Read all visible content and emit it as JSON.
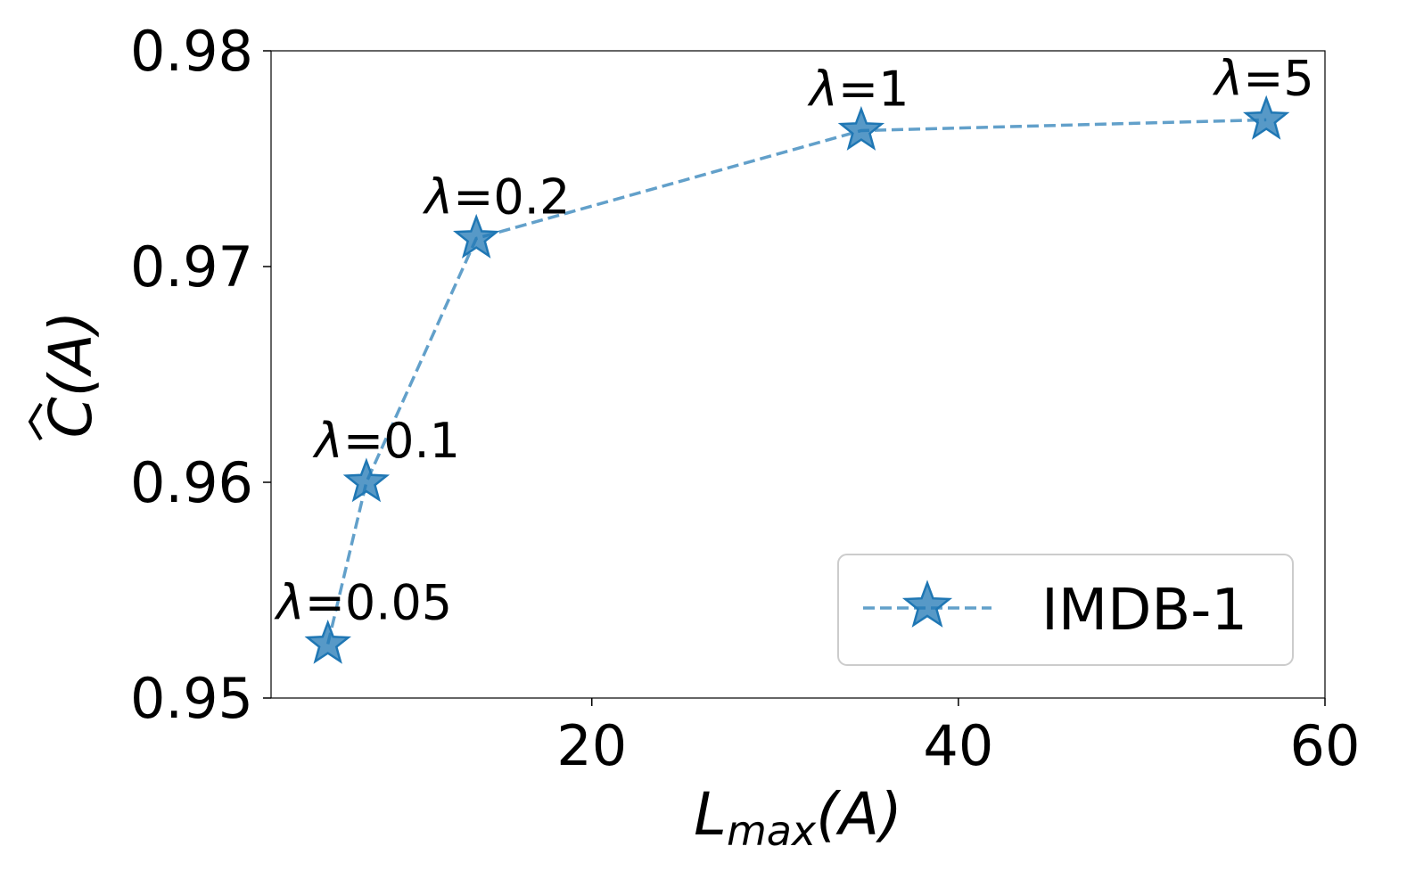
{
  "chart_data": {
    "type": "line",
    "xlabel_main": "L",
    "xlabel_sub": "max",
    "xlabel_tail": "(A)",
    "ylabel_symbol": "C",
    "ylabel_tail": "(A)",
    "xlim": [
      2.5,
      60
    ],
    "ylim": [
      0.95,
      0.98
    ],
    "xticks": [
      20,
      40,
      60
    ],
    "xtick_labels": [
      "20",
      "40",
      "60"
    ],
    "yticks": [
      0.95,
      0.96,
      0.97,
      0.98
    ],
    "ytick_labels": [
      "0.95",
      "0.96",
      "0.97",
      "0.98"
    ],
    "grid": false,
    "legend_position": "lower-right",
    "series": [
      {
        "name": "IMDB-1",
        "color": "#1f77b4",
        "marker": "star",
        "line_style": "dashed",
        "x": [
          5.6,
          7.7,
          13.7,
          34.7,
          56.8
        ],
        "y": [
          0.9525,
          0.96,
          0.9713,
          0.9763,
          0.9768
        ],
        "point_labels": [
          "λ=0.05",
          "λ=0.1",
          "λ=0.2",
          "λ=1",
          "λ=5"
        ]
      }
    ]
  }
}
